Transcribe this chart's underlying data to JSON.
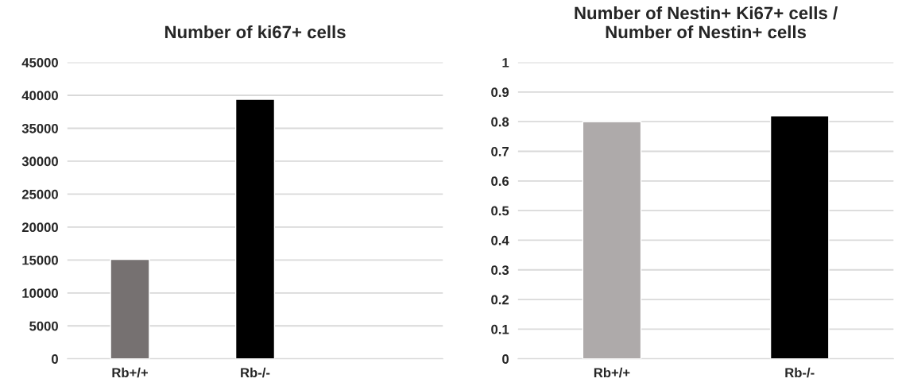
{
  "chart_data": [
    {
      "type": "bar",
      "title": "Number of ki67+ cells",
      "categories": [
        "Rb+/+",
        "Rb-/-",
        null
      ],
      "values": [
        15100,
        39400,
        null
      ],
      "colors": [
        "#767171",
        "#000000",
        "#000000"
      ],
      "ylim": [
        0,
        45000
      ],
      "yticks": [
        0,
        5000,
        10000,
        15000,
        20000,
        25000,
        30000,
        35000,
        40000,
        45000
      ],
      "grid": "y",
      "legend": false
    },
    {
      "type": "bar",
      "title": "Number of Nestin+ Ki67+ cells /\nNumber of Nestin+ cells",
      "categories": [
        "Rb+/+",
        "Rb-/-"
      ],
      "values": [
        0.8,
        0.82
      ],
      "colors": [
        "#aeaaaa",
        "#000000"
      ],
      "ylim": [
        0,
        1
      ],
      "yticks": [
        0,
        0.1,
        0.2,
        0.3,
        0.4,
        0.5,
        0.6,
        0.7,
        0.8,
        0.9,
        1
      ],
      "grid": "y",
      "legend": false
    }
  ]
}
